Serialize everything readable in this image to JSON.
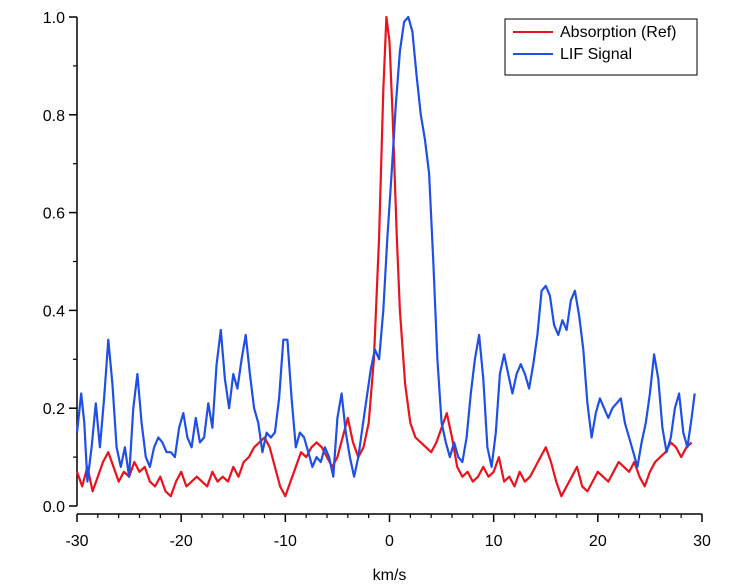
{
  "chart_data": {
    "type": "line",
    "title": "",
    "xlabel": "km/s",
    "ylabel": "",
    "xlim": [
      -30,
      30
    ],
    "ylim": [
      0,
      1
    ],
    "x_ticks": [
      -30,
      -20,
      -10,
      0,
      10,
      20,
      30
    ],
    "y_ticks": [
      "0.0",
      "0.2",
      "0.4",
      "0.6",
      "0.8",
      "1.0"
    ],
    "grid": false,
    "legend_position": "top-right",
    "series": [
      {
        "name": "Absorption (Ref)",
        "color": "#e8141c",
        "points": [
          [
            -30,
            0.07
          ],
          [
            -29.5,
            0.04
          ],
          [
            -29,
            0.08
          ],
          [
            -28.5,
            0.03
          ],
          [
            -28,
            0.06
          ],
          [
            -27.5,
            0.09
          ],
          [
            -27,
            0.11
          ],
          [
            -26.5,
            0.08
          ],
          [
            -26,
            0.05
          ],
          [
            -25.5,
            0.07
          ],
          [
            -25,
            0.06
          ],
          [
            -24.5,
            0.09
          ],
          [
            -24,
            0.07
          ],
          [
            -23.5,
            0.08
          ],
          [
            -23,
            0.05
          ],
          [
            -22.5,
            0.04
          ],
          [
            -22,
            0.06
          ],
          [
            -21.5,
            0.03
          ],
          [
            -21,
            0.02
          ],
          [
            -20.5,
            0.05
          ],
          [
            -20,
            0.07
          ],
          [
            -19.5,
            0.04
          ],
          [
            -19,
            0.05
          ],
          [
            -18.5,
            0.06
          ],
          [
            -18,
            0.05
          ],
          [
            -17.5,
            0.04
          ],
          [
            -17,
            0.07
          ],
          [
            -16.5,
            0.05
          ],
          [
            -16,
            0.06
          ],
          [
            -15.5,
            0.05
          ],
          [
            -15,
            0.08
          ],
          [
            -14.5,
            0.06
          ],
          [
            -14,
            0.09
          ],
          [
            -13.5,
            0.1
          ],
          [
            -13,
            0.12
          ],
          [
            -12.5,
            0.13
          ],
          [
            -12,
            0.14
          ],
          [
            -11.5,
            0.12
          ],
          [
            -11,
            0.08
          ],
          [
            -10.5,
            0.04
          ],
          [
            -10,
            0.02
          ],
          [
            -9.5,
            0.05
          ],
          [
            -9,
            0.08
          ],
          [
            -8.5,
            0.11
          ],
          [
            -8,
            0.1
          ],
          [
            -7.5,
            0.12
          ],
          [
            -7,
            0.13
          ],
          [
            -6.5,
            0.12
          ],
          [
            -6,
            0.1
          ],
          [
            -5.5,
            0.08
          ],
          [
            -5,
            0.1
          ],
          [
            -4.5,
            0.14
          ],
          [
            -4,
            0.18
          ],
          [
            -3.5,
            0.13
          ],
          [
            -3,
            0.1
          ],
          [
            -2.5,
            0.12
          ],
          [
            -2,
            0.17
          ],
          [
            -1.5,
            0.3
          ],
          [
            -1,
            0.55
          ],
          [
            -0.6,
            0.85
          ],
          [
            -0.3,
            1.0
          ],
          [
            0,
            0.95
          ],
          [
            0.3,
            0.8
          ],
          [
            0.7,
            0.55
          ],
          [
            1,
            0.4
          ],
          [
            1.5,
            0.25
          ],
          [
            2,
            0.17
          ],
          [
            2.5,
            0.14
          ],
          [
            3,
            0.13
          ],
          [
            3.5,
            0.12
          ],
          [
            4,
            0.11
          ],
          [
            4.5,
            0.13
          ],
          [
            5,
            0.16
          ],
          [
            5.5,
            0.19
          ],
          [
            6,
            0.14
          ],
          [
            6.5,
            0.08
          ],
          [
            7,
            0.06
          ],
          [
            7.5,
            0.07
          ],
          [
            8,
            0.05
          ],
          [
            8.5,
            0.06
          ],
          [
            9,
            0.08
          ],
          [
            9.5,
            0.06
          ],
          [
            10,
            0.07
          ],
          [
            10.5,
            0.1
          ],
          [
            11,
            0.05
          ],
          [
            11.5,
            0.06
          ],
          [
            12,
            0.04
          ],
          [
            12.5,
            0.07
          ],
          [
            13,
            0.05
          ],
          [
            13.5,
            0.06
          ],
          [
            14,
            0.08
          ],
          [
            14.5,
            0.1
          ],
          [
            15,
            0.12
          ],
          [
            15.5,
            0.09
          ],
          [
            16,
            0.05
          ],
          [
            16.5,
            0.02
          ],
          [
            17,
            0.04
          ],
          [
            17.5,
            0.06
          ],
          [
            18,
            0.08
          ],
          [
            18.5,
            0.04
          ],
          [
            19,
            0.03
          ],
          [
            19.5,
            0.05
          ],
          [
            20,
            0.07
          ],
          [
            20.5,
            0.06
          ],
          [
            21,
            0.05
          ],
          [
            21.5,
            0.07
          ],
          [
            22,
            0.09
          ],
          [
            22.5,
            0.08
          ],
          [
            23,
            0.07
          ],
          [
            23.5,
            0.09
          ],
          [
            24,
            0.06
          ],
          [
            24.5,
            0.04
          ],
          [
            25,
            0.07
          ],
          [
            25.5,
            0.09
          ],
          [
            26,
            0.1
          ],
          [
            26.5,
            0.11
          ],
          [
            27,
            0.13
          ],
          [
            27.5,
            0.12
          ],
          [
            28,
            0.1
          ],
          [
            28.5,
            0.12
          ],
          [
            29,
            0.13
          ]
        ]
      },
      {
        "name": "LIF Signal",
        "color": "#1e50e6",
        "points": [
          [
            -30,
            0.15
          ],
          [
            -29.6,
            0.23
          ],
          [
            -29.3,
            0.17
          ],
          [
            -29,
            0.05
          ],
          [
            -28.6,
            0.12
          ],
          [
            -28.2,
            0.21
          ],
          [
            -27.8,
            0.12
          ],
          [
            -27.4,
            0.22
          ],
          [
            -27,
            0.34
          ],
          [
            -26.6,
            0.25
          ],
          [
            -26.2,
            0.12
          ],
          [
            -25.8,
            0.08
          ],
          [
            -25.4,
            0.12
          ],
          [
            -25,
            0.06
          ],
          [
            -24.6,
            0.2
          ],
          [
            -24.2,
            0.27
          ],
          [
            -23.8,
            0.17
          ],
          [
            -23.4,
            0.1
          ],
          [
            -23,
            0.08
          ],
          [
            -22.6,
            0.12
          ],
          [
            -22.2,
            0.14
          ],
          [
            -21.8,
            0.13
          ],
          [
            -21.4,
            0.11
          ],
          [
            -21,
            0.11
          ],
          [
            -20.6,
            0.1
          ],
          [
            -20.2,
            0.16
          ],
          [
            -19.8,
            0.19
          ],
          [
            -19.4,
            0.14
          ],
          [
            -19,
            0.12
          ],
          [
            -18.6,
            0.18
          ],
          [
            -18.2,
            0.13
          ],
          [
            -17.8,
            0.14
          ],
          [
            -17.4,
            0.21
          ],
          [
            -17,
            0.16
          ],
          [
            -16.6,
            0.29
          ],
          [
            -16.2,
            0.36
          ],
          [
            -15.8,
            0.26
          ],
          [
            -15.4,
            0.2
          ],
          [
            -15,
            0.27
          ],
          [
            -14.6,
            0.24
          ],
          [
            -14.2,
            0.3
          ],
          [
            -13.8,
            0.35
          ],
          [
            -13.4,
            0.27
          ],
          [
            -13,
            0.2
          ],
          [
            -12.6,
            0.17
          ],
          [
            -12.2,
            0.11
          ],
          [
            -11.8,
            0.15
          ],
          [
            -11.4,
            0.14
          ],
          [
            -11,
            0.15
          ],
          [
            -10.6,
            0.22
          ],
          [
            -10.2,
            0.34
          ],
          [
            -9.8,
            0.34
          ],
          [
            -9.4,
            0.22
          ],
          [
            -9,
            0.12
          ],
          [
            -8.6,
            0.15
          ],
          [
            -8.2,
            0.14
          ],
          [
            -7.8,
            0.11
          ],
          [
            -7.4,
            0.08
          ],
          [
            -7,
            0.1
          ],
          [
            -6.6,
            0.09
          ],
          [
            -6.2,
            0.12
          ],
          [
            -5.8,
            0.1
          ],
          [
            -5.4,
            0.06
          ],
          [
            -5,
            0.18
          ],
          [
            -4.6,
            0.23
          ],
          [
            -4.2,
            0.15
          ],
          [
            -3.8,
            0.1
          ],
          [
            -3.4,
            0.06
          ],
          [
            -3,
            0.1
          ],
          [
            -2.6,
            0.16
          ],
          [
            -2.2,
            0.22
          ],
          [
            -1.8,
            0.28
          ],
          [
            -1.4,
            0.32
          ],
          [
            -1,
            0.3
          ],
          [
            -0.6,
            0.4
          ],
          [
            -0.2,
            0.55
          ],
          [
            0.2,
            0.68
          ],
          [
            0.6,
            0.82
          ],
          [
            1,
            0.93
          ],
          [
            1.4,
            0.99
          ],
          [
            1.8,
            1.0
          ],
          [
            2.2,
            0.97
          ],
          [
            2.6,
            0.88
          ],
          [
            3,
            0.8
          ],
          [
            3.4,
            0.75
          ],
          [
            3.8,
            0.68
          ],
          [
            4.2,
            0.5
          ],
          [
            4.6,
            0.3
          ],
          [
            5,
            0.17
          ],
          [
            5.4,
            0.13
          ],
          [
            5.8,
            0.1
          ],
          [
            6.2,
            0.13
          ],
          [
            6.6,
            0.1
          ],
          [
            7,
            0.09
          ],
          [
            7.4,
            0.14
          ],
          [
            7.8,
            0.23
          ],
          [
            8.2,
            0.3
          ],
          [
            8.6,
            0.35
          ],
          [
            9,
            0.26
          ],
          [
            9.4,
            0.12
          ],
          [
            9.8,
            0.08
          ],
          [
            10.2,
            0.15
          ],
          [
            10.6,
            0.27
          ],
          [
            11,
            0.31
          ],
          [
            11.4,
            0.27
          ],
          [
            11.8,
            0.23
          ],
          [
            12.2,
            0.27
          ],
          [
            12.6,
            0.29
          ],
          [
            13,
            0.27
          ],
          [
            13.4,
            0.24
          ],
          [
            13.8,
            0.29
          ],
          [
            14.2,
            0.35
          ],
          [
            14.6,
            0.44
          ],
          [
            15,
            0.45
          ],
          [
            15.4,
            0.43
          ],
          [
            15.8,
            0.37
          ],
          [
            16.2,
            0.35
          ],
          [
            16.6,
            0.38
          ],
          [
            17,
            0.36
          ],
          [
            17.4,
            0.42
          ],
          [
            17.8,
            0.44
          ],
          [
            18.2,
            0.39
          ],
          [
            18.6,
            0.32
          ],
          [
            19,
            0.21
          ],
          [
            19.4,
            0.14
          ],
          [
            19.8,
            0.19
          ],
          [
            20.2,
            0.22
          ],
          [
            20.6,
            0.2
          ],
          [
            21,
            0.18
          ],
          [
            21.4,
            0.2
          ],
          [
            21.8,
            0.21
          ],
          [
            22.2,
            0.22
          ],
          [
            22.6,
            0.17
          ],
          [
            23,
            0.14
          ],
          [
            23.4,
            0.11
          ],
          [
            23.8,
            0.08
          ],
          [
            24.2,
            0.13
          ],
          [
            24.6,
            0.17
          ],
          [
            25,
            0.23
          ],
          [
            25.4,
            0.31
          ],
          [
            25.8,
            0.26
          ],
          [
            26.2,
            0.16
          ],
          [
            26.6,
            0.11
          ],
          [
            27,
            0.14
          ],
          [
            27.4,
            0.2
          ],
          [
            27.8,
            0.23
          ],
          [
            28.2,
            0.15
          ],
          [
            28.6,
            0.12
          ],
          [
            29,
            0.18
          ],
          [
            29.3,
            0.23
          ]
        ]
      }
    ]
  }
}
